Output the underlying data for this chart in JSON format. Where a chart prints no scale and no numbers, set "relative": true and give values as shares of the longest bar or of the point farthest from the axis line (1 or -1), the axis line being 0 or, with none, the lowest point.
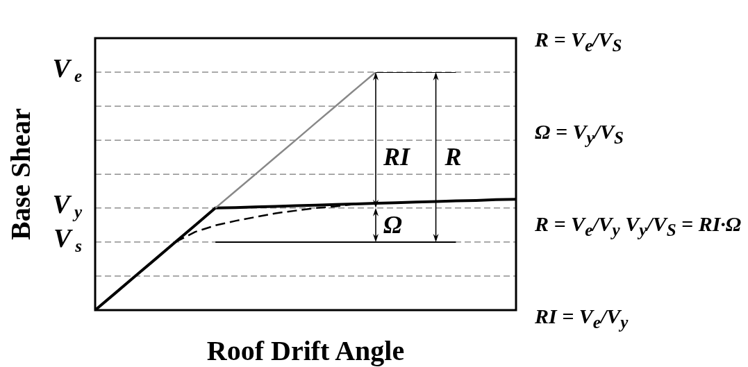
{
  "chart_data": {
    "type": "line",
    "relative": true,
    "xlabel": "Roof Drift Angle",
    "ylabel": "Base Shear",
    "categories": [
      null,
      null,
      null,
      null,
      null,
      null,
      null,
      null,
      null,
      null,
      null,
      null,
      null,
      null,
      null,
      null,
      null,
      null,
      null,
      null,
      null,
      null
    ],
    "series": [
      {
        "color": "#000000",
        "values": [
          0,
          0.071,
          0.143,
          0.214,
          0.286,
          0.357,
          0.429,
          0.431,
          0.434,
          0.436,
          0.439,
          0.441,
          0.444,
          0.446,
          0.449,
          0.451,
          0.454,
          0.456,
          0.459,
          0.461,
          0.464,
          0.466
        ]
      },
      {
        "color": "#888888",
        "values": [
          null,
          null,
          null,
          null,
          null,
          null,
          0.429,
          0.5,
          0.571,
          0.643,
          0.714,
          0.786,
          0.857,
          0.929,
          1,
          null,
          null,
          null,
          null,
          null,
          null,
          null
        ]
      },
      {
        "color": "#000000",
        "line_style": "dashed",
        "values": [
          null,
          null,
          null,
          null,
          0.286,
          0.329,
          0.356,
          0.375,
          0.391,
          0.407,
          0.418,
          0.429,
          0.436,
          0.446,
          null,
          null,
          null,
          null,
          null,
          null,
          null,
          null
        ]
      },
      {
        "color": "#000000",
        "values": [
          null,
          null,
          null,
          null,
          null,
          null,
          null,
          null,
          null,
          null,
          null,
          null,
          null,
          null,
          1,
          1,
          1,
          1,
          1,
          null,
          null,
          null
        ]
      },
      {
        "color": "#000000",
        "values": [
          null,
          null,
          null,
          null,
          null,
          null,
          0.286,
          0.286,
          0.286,
          0.286,
          0.286,
          0.286,
          0.286,
          0.286,
          0.286,
          0.286,
          0.286,
          0.286,
          0.286,
          null,
          null,
          null
        ]
      }
    ],
    "ref_lines": [
      {
        "axis": "y",
        "value": 0.143,
        "color": "#555555",
        "line_style": "dashed"
      },
      {
        "axis": "y",
        "value": 0.286,
        "label": "V$_{s}$",
        "color": "#555555",
        "line_style": "dashed"
      },
      {
        "axis": "y",
        "value": 0.429,
        "label": "V$_{y}$",
        "color": "#555555",
        "line_style": "dashed"
      },
      {
        "axis": "y",
        "value": 0.571,
        "color": "#555555",
        "line_style": "dashed"
      },
      {
        "axis": "y",
        "value": 0.714,
        "color": "#555555",
        "line_style": "dashed"
      },
      {
        "axis": "y",
        "value": 0.857,
        "color": "#555555",
        "line_style": "dashed"
      },
      {
        "axis": "y",
        "value": 1,
        "label": "V$_{e}$",
        "color": "#555555",
        "line_style": "dashed"
      }
    ],
    "annotations": [
      "RI",
      "Ω",
      "R",
      "R = V$_{e}$/V$_{S}$",
      "Ω = V$_{y}$/V$_{S}$",
      "R = V$_{e}$/V$_{y}$ V$_{y}$/V$_{S}$ = RI·Ω",
      "RI = V$_{e}$/V$_{y}$"
    ]
  }
}
